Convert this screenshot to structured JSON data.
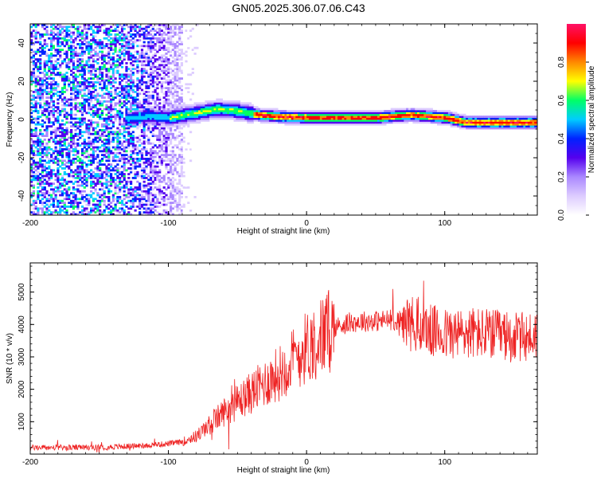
{
  "title": "GN05.2025.306.07.06.C43",
  "colors": {
    "snr_line": "#ee2222",
    "axes": "#000000",
    "colormap": [
      "#ffffff",
      "#ddccff",
      "#aa88ff",
      "#5500ee",
      "#0022ff",
      "#00ccff",
      "#00ff66",
      "#ffff00",
      "#ff8800",
      "#ff0000",
      "#ff1166"
    ]
  },
  "chart_data": [
    {
      "type": "heatmap",
      "xlabel": "Height of straight line (km)",
      "ylabel": "Frequency (Hz)",
      "xlim": [
        -200,
        167
      ],
      "ylim": [
        -50,
        50
      ],
      "x_ticks": [
        -200,
        -100,
        0,
        100
      ],
      "y_ticks": [
        -40,
        -20,
        0,
        20,
        40
      ],
      "colorbar": {
        "label": "Normalized spectral amplitude",
        "range": [
          0.0,
          1.0
        ],
        "ticks": [
          "0.0",
          "0.2",
          "0.4",
          "0.6",
          "0.8"
        ]
      },
      "ridge": [
        {
          "x": -130,
          "freq": 0.0
        },
        {
          "x": -115,
          "freq": 1.5
        },
        {
          "x": -100,
          "freq": 0.5
        },
        {
          "x": -80,
          "freq": 3.0
        },
        {
          "x": -65,
          "freq": 5.0
        },
        {
          "x": -50,
          "freq": 4.0
        },
        {
          "x": -35,
          "freq": 2.0
        },
        {
          "x": -20,
          "freq": 1.0
        },
        {
          "x": 0,
          "freq": 0.5
        },
        {
          "x": 50,
          "freq": 0.5
        },
        {
          "x": 75,
          "freq": 2.0
        },
        {
          "x": 100,
          "freq": 0.5
        },
        {
          "x": 115,
          "freq": -2.0
        },
        {
          "x": 167,
          "freq": -2.0
        }
      ]
    },
    {
      "type": "line",
      "xlabel": "Height of straight line (km)",
      "ylabel": "SNR (10 * v/v)",
      "xlim": [
        -200,
        167
      ],
      "ylim": [
        0,
        5900
      ],
      "x_ticks": [
        -200,
        -100,
        0,
        100
      ],
      "y_ticks": [
        1000,
        2000,
        3000,
        4000,
        5000
      ],
      "series": [
        {
          "x": [
            -200,
            -180,
            -160,
            -140,
            -120,
            -100,
            -90,
            -80,
            -70,
            -60,
            -50,
            -40,
            -30,
            -20,
            -10,
            0,
            10,
            20,
            30,
            40,
            50,
            60,
            70,
            80,
            90,
            100,
            110,
            120,
            130,
            140,
            150,
            160,
            167
          ],
          "values": [
            200,
            200,
            200,
            220,
            260,
            320,
            380,
            550,
            900,
            1300,
            1600,
            1900,
            2200,
            2500,
            2900,
            3300,
            3600,
            3900,
            4050,
            4100,
            4100,
            4150,
            4100,
            4000,
            3800,
            3700,
            3700,
            3750,
            3700,
            3650,
            3600,
            3600,
            3700
          ]
        }
      ]
    }
  ]
}
